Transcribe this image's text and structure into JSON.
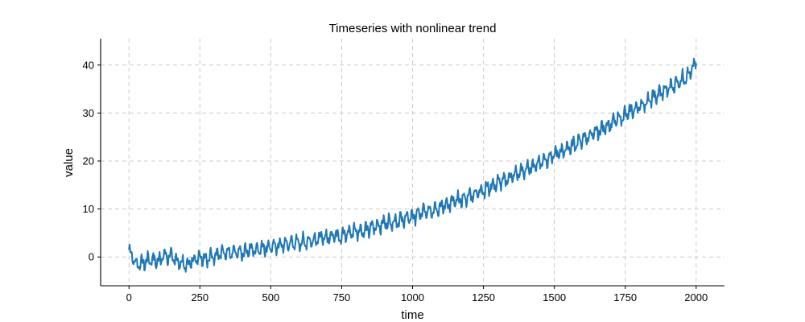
{
  "chart_data": {
    "type": "line",
    "title": "Timeseries with nonlinear trend",
    "xlabel": "time",
    "ylabel": "value",
    "xlim": [
      -100,
      2100
    ],
    "ylim": [
      -6,
      45.5
    ],
    "xticks": [
      0,
      250,
      500,
      750,
      1000,
      1250,
      1500,
      1750,
      2000
    ],
    "xtick_labels": [
      "0",
      "250",
      "500",
      "750",
      "1000",
      "1250",
      "1500",
      "1750",
      "2000"
    ],
    "yticks": [
      0,
      10,
      20,
      30,
      40
    ],
    "ytick_labels": [
      "0",
      "10",
      "20",
      "30",
      "40"
    ],
    "grid": true,
    "series": [
      {
        "color": "#1f77b4",
        "x": [
          0,
          25,
          50,
          75,
          100,
          125,
          150,
          175,
          200,
          225,
          250,
          275,
          300,
          325,
          350,
          375,
          400,
          425,
          450,
          475,
          500,
          525,
          550,
          575,
          600,
          625,
          650,
          675,
          700,
          725,
          750,
          775,
          800,
          825,
          850,
          875,
          900,
          925,
          950,
          975,
          1000,
          1025,
          1050,
          1075,
          1100,
          1125,
          1150,
          1175,
          1200,
          1225,
          1250,
          1275,
          1300,
          1325,
          1350,
          1375,
          1400,
          1425,
          1450,
          1475,
          1500,
          1525,
          1550,
          1575,
          1600,
          1625,
          1650,
          1675,
          1700,
          1725,
          1750,
          1775,
          1800,
          1825,
          1850,
          1875,
          1900,
          1925,
          1950,
          1975,
          2000
        ],
        "y": [
          1.5,
          -1.5,
          -1.2,
          -0.5,
          -0.8,
          0.3,
          0.0,
          -1.0,
          -1.8,
          -0.7,
          0.2,
          -0.4,
          0.4,
          0.8,
          0.6,
          1.0,
          1.0,
          1.5,
          1.6,
          2.0,
          2.0,
          2.4,
          2.6,
          2.9,
          3.0,
          3.2,
          3.6,
          4.0,
          4.1,
          4.8,
          4.3,
          5.0,
          5.5,
          5.4,
          6.0,
          6.5,
          7.0,
          7.3,
          7.6,
          8.0,
          8.4,
          9.0,
          9.5,
          10.0,
          10.5,
          11.0,
          11.6,
          12.0,
          12.7,
          13.4,
          14.0,
          14.6,
          15.4,
          16.0,
          16.8,
          17.5,
          18.2,
          19.0,
          19.8,
          20.5,
          21.2,
          22.0,
          22.8,
          23.6,
          24.5,
          25.3,
          26.0,
          27.0,
          27.8,
          28.7,
          29.6,
          30.5,
          31.4,
          32.3,
          33.2,
          34.2,
          35.0,
          36.0,
          37.0,
          38.0,
          40.5
        ]
      }
    ]
  }
}
